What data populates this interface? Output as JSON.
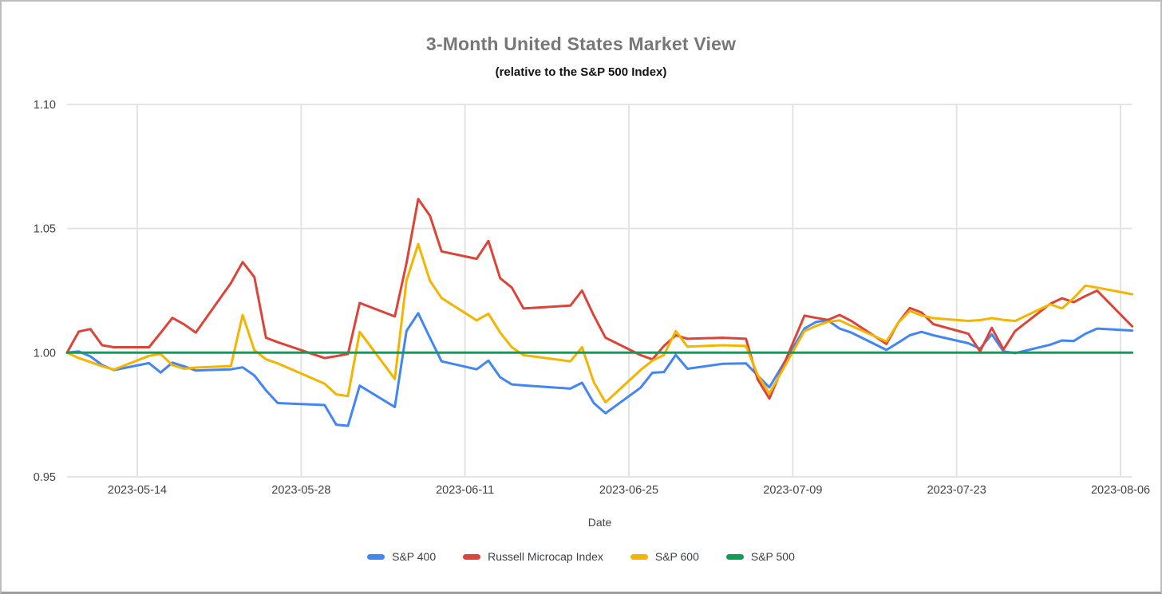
{
  "title": "3-Month United States Market View",
  "subtitle": "(relative to the S&P 500 Index)",
  "colors": {
    "grid": "#e3e3e3",
    "axis_text": "#424242",
    "title_text": "#777777",
    "subtitle_text": "#111111",
    "background": "#ffffff",
    "border": "#bdbdbd"
  },
  "chart_data": {
    "type": "line",
    "title": "3-Month United States Market View",
    "subtitle": "(relative to the S&P 500 Index)",
    "xlabel": "Date",
    "ylabel": "",
    "ylim": [
      0.95,
      1.1
    ],
    "x_range": [
      "2023-05-08",
      "2023-08-07"
    ],
    "grid": true,
    "legend_position": "bottom",
    "y_ticks": [
      {
        "value": 1.1,
        "label": "1.10"
      },
      {
        "value": 1.05,
        "label": "1.05"
      },
      {
        "value": 1.0,
        "label": "1.00"
      },
      {
        "value": 0.95,
        "label": "0.95"
      }
    ],
    "x_ticks": [
      {
        "date": "2023-05-14",
        "label": "2023-05-14"
      },
      {
        "date": "2023-05-28",
        "label": "2023-05-28"
      },
      {
        "date": "2023-06-11",
        "label": "2023-06-11"
      },
      {
        "date": "2023-06-25",
        "label": "2023-06-25"
      },
      {
        "date": "2023-07-09",
        "label": "2023-07-09"
      },
      {
        "date": "2023-07-23",
        "label": "2023-07-23"
      },
      {
        "date": "2023-08-06",
        "label": "2023-08-06"
      }
    ],
    "dates": [
      "2023-05-08",
      "2023-05-09",
      "2023-05-10",
      "2023-05-11",
      "2023-05-12",
      "2023-05-15",
      "2023-05-16",
      "2023-05-17",
      "2023-05-18",
      "2023-05-19",
      "2023-05-22",
      "2023-05-23",
      "2023-05-24",
      "2023-05-25",
      "2023-05-26",
      "2023-05-30",
      "2023-05-31",
      "2023-06-01",
      "2023-06-02",
      "2023-06-05",
      "2023-06-06",
      "2023-06-07",
      "2023-06-08",
      "2023-06-09",
      "2023-06-12",
      "2023-06-13",
      "2023-06-14",
      "2023-06-15",
      "2023-06-16",
      "2023-06-20",
      "2023-06-21",
      "2023-06-22",
      "2023-06-23",
      "2023-06-26",
      "2023-06-27",
      "2023-06-28",
      "2023-06-29",
      "2023-06-30",
      "2023-07-03",
      "2023-07-05",
      "2023-07-06",
      "2023-07-07",
      "2023-07-10",
      "2023-07-11",
      "2023-07-12",
      "2023-07-13",
      "2023-07-14",
      "2023-07-17",
      "2023-07-18",
      "2023-07-19",
      "2023-07-20",
      "2023-07-21",
      "2023-07-24",
      "2023-07-25",
      "2023-07-26",
      "2023-07-27",
      "2023-07-28",
      "2023-07-31",
      "2023-08-01",
      "2023-08-02",
      "2023-08-03",
      "2023-08-04",
      "2023-08-07"
    ],
    "series": [
      {
        "name": "S&P 400",
        "color": "#4285f4",
        "values": [
          1.0,
          1.0005,
          0.9985,
          0.995,
          0.993,
          0.9958,
          0.992,
          0.996,
          0.9945,
          0.9928,
          0.9933,
          0.9941,
          0.9908,
          0.9848,
          0.9797,
          0.9789,
          0.971,
          0.9705,
          0.9867,
          0.9781,
          1.0087,
          1.0159,
          1.006,
          0.9965,
          0.9933,
          0.9968,
          0.9901,
          0.9872,
          0.9868,
          0.9855,
          0.9879,
          0.9797,
          0.9756,
          0.9859,
          0.9919,
          0.9922,
          0.9991,
          0.9935,
          0.9955,
          0.9957,
          0.9908,
          0.986,
          1.0097,
          1.0124,
          1.013,
          1.0097,
          1.0081,
          1.0011,
          1.004,
          1.007,
          1.0084,
          1.007,
          1.0038,
          1.0016,
          1.0074,
          1.0005,
          0.9998,
          1.0032,
          1.0049,
          1.0047,
          1.0076,
          1.0097,
          1.0089
        ]
      },
      {
        "name": "Russell Microcap Index",
        "color": "#db4437",
        "values": [
          1.0,
          1.0085,
          1.0095,
          1.003,
          1.0022,
          1.0022,
          1.008,
          1.014,
          1.0114,
          1.0081,
          1.028,
          1.0365,
          1.0305,
          1.006,
          1.0042,
          0.9978,
          0.9986,
          0.9995,
          1.02,
          1.0146,
          1.036,
          1.0619,
          1.0552,
          1.0408,
          1.0378,
          1.045,
          1.03,
          1.0262,
          1.0178,
          1.019,
          1.025,
          1.015,
          1.006,
          0.999,
          0.9973,
          1.0027,
          1.007,
          1.0056,
          1.006,
          1.0056,
          0.9892,
          0.9815,
          1.0149,
          1.014,
          1.0132,
          1.0152,
          1.0128,
          1.0035,
          1.012,
          1.018,
          1.0162,
          1.0115,
          1.0076,
          1.0005,
          1.01,
          1.0013,
          1.0087,
          1.0197,
          1.0219,
          1.0203,
          1.0228,
          1.025,
          1.0106
        ]
      },
      {
        "name": "S&P 600",
        "color": "#f4b400",
        "values": [
          1.0,
          0.9978,
          0.9962,
          0.9945,
          0.9932,
          0.9987,
          0.9995,
          0.995,
          0.9935,
          0.994,
          0.9946,
          1.0152,
          1.001,
          0.9973,
          0.9957,
          0.9875,
          0.9832,
          0.9825,
          1.0084,
          0.9894,
          1.029,
          1.0438,
          1.029,
          1.022,
          1.013,
          1.0157,
          1.0081,
          1.0022,
          0.999,
          0.9965,
          1.0022,
          0.9881,
          0.98,
          0.993,
          0.9968,
          0.9991,
          1.0087,
          1.0024,
          1.003,
          1.0027,
          0.991,
          0.9835,
          1.0087,
          1.0108,
          1.0124,
          1.013,
          1.0108,
          1.0045,
          1.012,
          1.0168,
          1.015,
          1.0139,
          1.0128,
          1.0131,
          1.0139,
          1.0132,
          1.0128,
          1.0195,
          1.0178,
          1.022,
          1.027,
          1.0262,
          1.0235
        ]
      },
      {
        "name": "S&P 500",
        "color": "#0f9d58",
        "values": [
          1.0,
          1.0,
          1.0,
          1.0,
          1.0,
          1.0,
          1.0,
          1.0,
          1.0,
          1.0,
          1.0,
          1.0,
          1.0,
          1.0,
          1.0,
          1.0,
          1.0,
          1.0,
          1.0,
          1.0,
          1.0,
          1.0,
          1.0,
          1.0,
          1.0,
          1.0,
          1.0,
          1.0,
          1.0,
          1.0,
          1.0,
          1.0,
          1.0,
          1.0,
          1.0,
          1.0,
          1.0,
          1.0,
          1.0,
          1.0,
          1.0,
          1.0,
          1.0,
          1.0,
          1.0,
          1.0,
          1.0,
          1.0,
          1.0,
          1.0,
          1.0,
          1.0,
          1.0,
          1.0,
          1.0,
          1.0,
          1.0,
          1.0,
          1.0,
          1.0,
          1.0,
          1.0,
          1.0
        ]
      }
    ]
  }
}
